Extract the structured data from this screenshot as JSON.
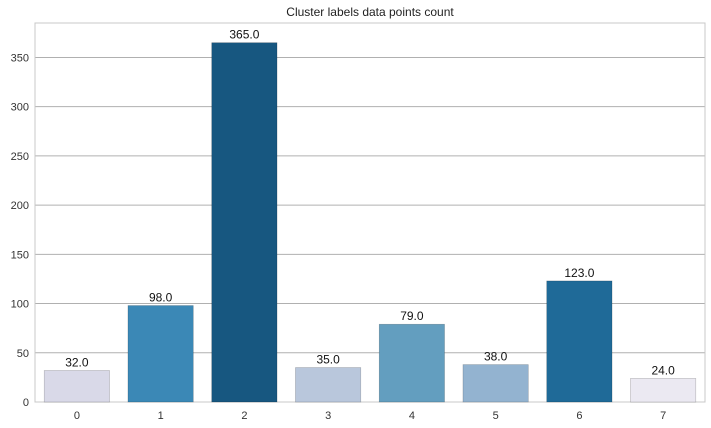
{
  "chart_data": {
    "type": "bar",
    "title": "Cluster labels data points count",
    "xlabel": "",
    "ylabel": "",
    "categories": [
      "0",
      "1",
      "2",
      "3",
      "4",
      "5",
      "6",
      "7"
    ],
    "values": [
      32.0,
      98.0,
      365.0,
      35.0,
      79.0,
      38.0,
      123.0,
      24.0
    ],
    "value_labels": [
      "32.0",
      "98.0",
      "365.0",
      "35.0",
      "79.0",
      "38.0",
      "123.0",
      "24.0"
    ],
    "colors": [
      "#d9d9e8",
      "#3b88b6",
      "#175780",
      "#b9c7dc",
      "#639ebf",
      "#93b3d0",
      "#1f6a98",
      "#ebe9f2"
    ],
    "ylim": [
      0,
      385
    ],
    "yticks": [
      0,
      50,
      100,
      150,
      200,
      250,
      300,
      350
    ],
    "grid": "horizontal",
    "legend": "none"
  }
}
